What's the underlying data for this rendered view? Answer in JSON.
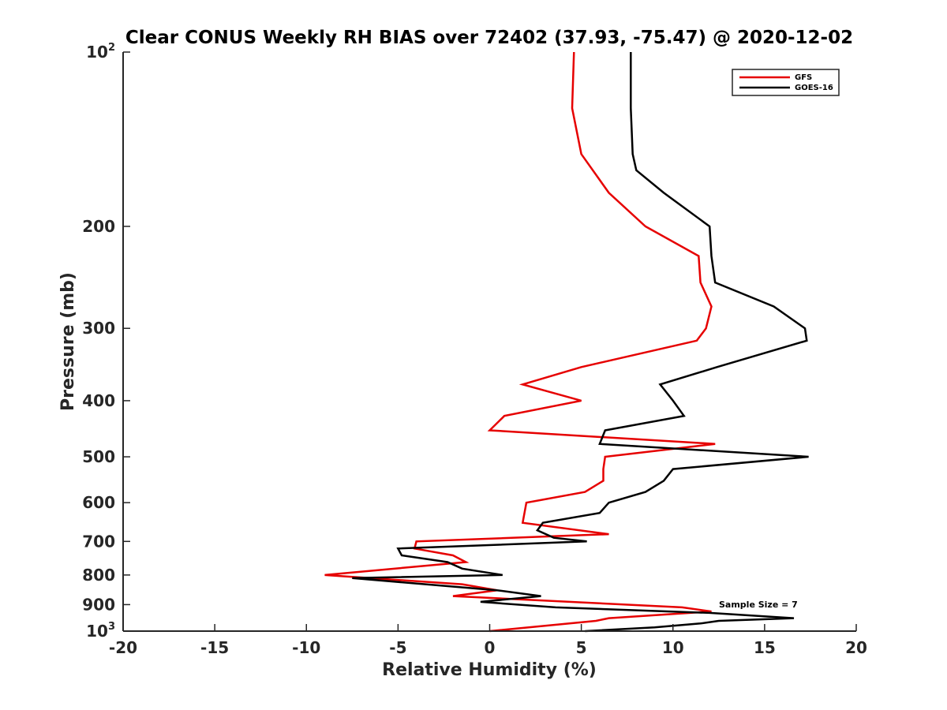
{
  "chart_data": {
    "type": "line",
    "title": "Clear CONUS Weekly RH BIAS over 72402 (37.93, -75.47) @ 2020-12-02",
    "xlabel": "Relative Humidity (%)",
    "ylabel": "Pressure (mb)",
    "xlim": [
      -20,
      20
    ],
    "ylim": [
      100,
      1000
    ],
    "yscale": "log",
    "y_reversed": true,
    "x_ticks": [
      -20,
      -15,
      -10,
      -5,
      0,
      5,
      10,
      15,
      20
    ],
    "x_tick_labels": [
      "-20",
      "-15",
      "-10",
      "-5",
      "0",
      "5",
      "10",
      "15",
      "20"
    ],
    "y_ticks": [
      {
        "value": 100,
        "label": "10",
        "exp": "2"
      },
      {
        "value": 200,
        "label": "200",
        "exp": ""
      },
      {
        "value": 300,
        "label": "300",
        "exp": ""
      },
      {
        "value": 400,
        "label": "400",
        "exp": ""
      },
      {
        "value": 500,
        "label": "500",
        "exp": ""
      },
      {
        "value": 600,
        "label": "600",
        "exp": ""
      },
      {
        "value": 700,
        "label": "700",
        "exp": ""
      },
      {
        "value": 800,
        "label": "800",
        "exp": ""
      },
      {
        "value": 900,
        "label": "900",
        "exp": ""
      },
      {
        "value": 1000,
        "label": "10",
        "exp": "3"
      }
    ],
    "legend_position": "top-right",
    "annotation": "Sample Size = 7",
    "series": [
      {
        "name": "GFS",
        "color": "#e60000",
        "points": [
          [
            4.6,
            100
          ],
          [
            4.5,
            125
          ],
          [
            5.0,
            150
          ],
          [
            6.5,
            175
          ],
          [
            8.5,
            200
          ],
          [
            11.4,
            225
          ],
          [
            11.5,
            250
          ],
          [
            12.1,
            275
          ],
          [
            11.8,
            300
          ],
          [
            11.3,
            315
          ],
          [
            5.0,
            350
          ],
          [
            1.8,
            375
          ],
          [
            5.0,
            400
          ],
          [
            0.8,
            425
          ],
          [
            0.0,
            450
          ],
          [
            12.3,
            475
          ],
          [
            6.3,
            500
          ],
          [
            6.2,
            525
          ],
          [
            6.2,
            550
          ],
          [
            5.2,
            575
          ],
          [
            2.0,
            600
          ],
          [
            1.8,
            650
          ],
          [
            6.5,
            680
          ],
          [
            -4.0,
            700
          ],
          [
            -4.1,
            720
          ],
          [
            -2.0,
            740
          ],
          [
            -1.3,
            760
          ],
          [
            -9.0,
            800
          ],
          [
            -1.5,
            830
          ],
          [
            0.4,
            850
          ],
          [
            -2.0,
            870
          ],
          [
            10.5,
            910
          ],
          [
            12.1,
            925
          ],
          [
            6.5,
            950
          ],
          [
            5.8,
            960
          ],
          [
            0.0,
            1000
          ]
        ]
      },
      {
        "name": "GOES-16",
        "color": "#000000",
        "points": [
          [
            7.7,
            100
          ],
          [
            7.7,
            125
          ],
          [
            7.8,
            150
          ],
          [
            8.0,
            160
          ],
          [
            9.5,
            175
          ],
          [
            12.0,
            200
          ],
          [
            12.1,
            225
          ],
          [
            12.3,
            250
          ],
          [
            15.5,
            275
          ],
          [
            17.2,
            300
          ],
          [
            17.3,
            315
          ],
          [
            12.4,
            350
          ],
          [
            9.3,
            375
          ],
          [
            10.0,
            400
          ],
          [
            10.6,
            425
          ],
          [
            6.3,
            450
          ],
          [
            6.0,
            475
          ],
          [
            17.4,
            500
          ],
          [
            10.0,
            525
          ],
          [
            9.5,
            550
          ],
          [
            8.5,
            575
          ],
          [
            6.5,
            600
          ],
          [
            6.0,
            625
          ],
          [
            2.9,
            650
          ],
          [
            2.6,
            670
          ],
          [
            3.5,
            690
          ],
          [
            5.3,
            700
          ],
          [
            -5.0,
            720
          ],
          [
            -4.8,
            740
          ],
          [
            -2.3,
            760
          ],
          [
            -1.5,
            780
          ],
          [
            0.7,
            800
          ],
          [
            -7.5,
            810
          ],
          [
            0.4,
            850
          ],
          [
            2.8,
            870
          ],
          [
            -0.5,
            890
          ],
          [
            3.6,
            910
          ],
          [
            12.0,
            930
          ],
          [
            16.6,
            950
          ],
          [
            12.5,
            960
          ],
          [
            11.5,
            970
          ],
          [
            9.0,
            985
          ],
          [
            5.2,
            1000
          ]
        ]
      }
    ]
  }
}
